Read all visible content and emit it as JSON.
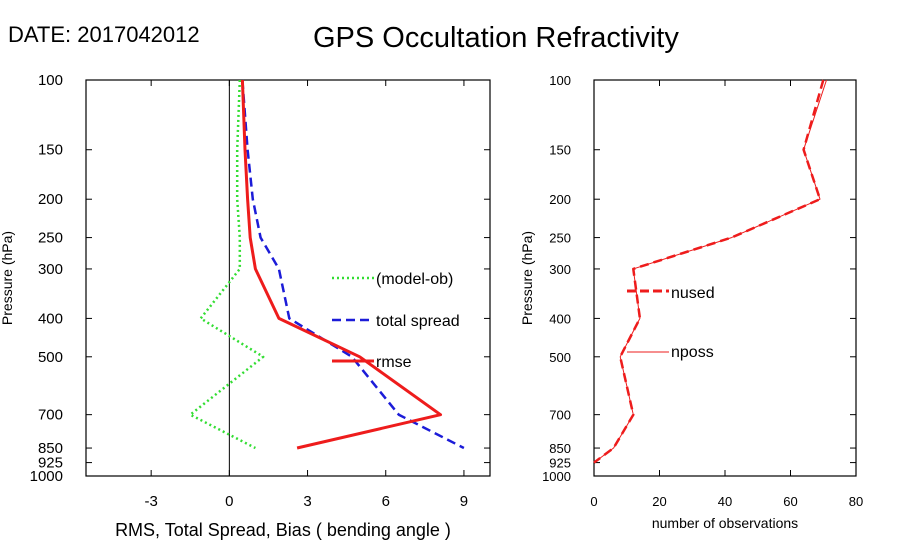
{
  "header": {
    "date_label": "DATE: 2017042012",
    "title": "GPS Occultation Refractivity"
  },
  "chart_data": [
    {
      "type": "line",
      "id": "left",
      "xlabel": "RMS, Total Spread, Bias ( bending angle )",
      "ylabel": "Pressure (hPa)",
      "xlim": [
        -5.5,
        10
      ],
      "ylim": [
        1000,
        100
      ],
      "y_scale": "log",
      "xticks": [
        -3,
        0,
        3,
        6,
        9
      ],
      "xtick_labels": [
        "-3",
        "0",
        "3",
        "6",
        "9"
      ],
      "yticks": [
        100,
        150,
        200,
        250,
        300,
        400,
        500,
        700,
        850,
        925,
        1000
      ],
      "ytick_labels": [
        "100",
        "150",
        "200",
        "250",
        "300",
        "400",
        "500",
        "700",
        "850",
        "925",
        "1000"
      ],
      "zero_line": 0,
      "series": [
        {
          "name": "(model-ob)",
          "color": "#33dd33",
          "style": "dotted",
          "points": [
            [
              0.4,
              100
            ],
            [
              0.3,
              150
            ],
            [
              0.3,
              200
            ],
            [
              0.4,
              250
            ],
            [
              0.4,
              300
            ],
            [
              -1.1,
              400
            ],
            [
              1.3,
              500
            ],
            [
              -1.5,
              700
            ],
            [
              1.0,
              850
            ]
          ]
        },
        {
          "name": "total spread",
          "color": "#1c1cd8",
          "style": "dashed",
          "points": [
            [
              0.5,
              100
            ],
            [
              0.7,
              150
            ],
            [
              0.9,
              200
            ],
            [
              1.2,
              250
            ],
            [
              1.9,
              300
            ],
            [
              2.3,
              400
            ],
            [
              4.7,
              500
            ],
            [
              6.5,
              700
            ],
            [
              9.0,
              850
            ]
          ]
        },
        {
          "name": "rmse",
          "color": "#ee1c1c",
          "style": "solid",
          "points": [
            [
              0.5,
              100
            ],
            [
              0.6,
              150
            ],
            [
              0.7,
              200
            ],
            [
              0.8,
              250
            ],
            [
              1.0,
              300
            ],
            [
              1.9,
              400
            ],
            [
              5.0,
              500
            ],
            [
              8.1,
              700
            ],
            [
              2.6,
              850
            ]
          ]
        }
      ]
    },
    {
      "type": "line",
      "id": "right",
      "xlabel": "number of observations",
      "ylabel": "Pressure (hPa)",
      "xlim": [
        0,
        80
      ],
      "ylim": [
        1000,
        100
      ],
      "y_scale": "log",
      "xticks": [
        0,
        20,
        40,
        60,
        80
      ],
      "xtick_labels": [
        "0",
        "20",
        "40",
        "60",
        "80"
      ],
      "yticks": [
        100,
        150,
        200,
        250,
        300,
        400,
        500,
        700,
        850,
        925,
        1000
      ],
      "ytick_labels": [
        "100",
        "150",
        "200",
        "250",
        "300",
        "400",
        "500",
        "700",
        "850",
        "925",
        "1000"
      ],
      "series": [
        {
          "name": "nused",
          "color": "#ee1c1c",
          "style": "dashed",
          "points": [
            [
              70,
              100
            ],
            [
              64,
              150
            ],
            [
              69,
              200
            ],
            [
              42,
              250
            ],
            [
              12,
              300
            ],
            [
              14,
              400
            ],
            [
              8,
              500
            ],
            [
              12,
              700
            ],
            [
              6,
              850
            ],
            [
              0,
              925
            ]
          ]
        },
        {
          "name": "nposs",
          "color": "#ee1c1c",
          "style": "thin",
          "points": [
            [
              71,
              100
            ],
            [
              64,
              150
            ],
            [
              69,
              200
            ],
            [
              42,
              250
            ],
            [
              12,
              300
            ],
            [
              14,
              400
            ],
            [
              8,
              500
            ],
            [
              12,
              700
            ],
            [
              6,
              850
            ],
            [
              0,
              925
            ]
          ]
        }
      ]
    }
  ]
}
